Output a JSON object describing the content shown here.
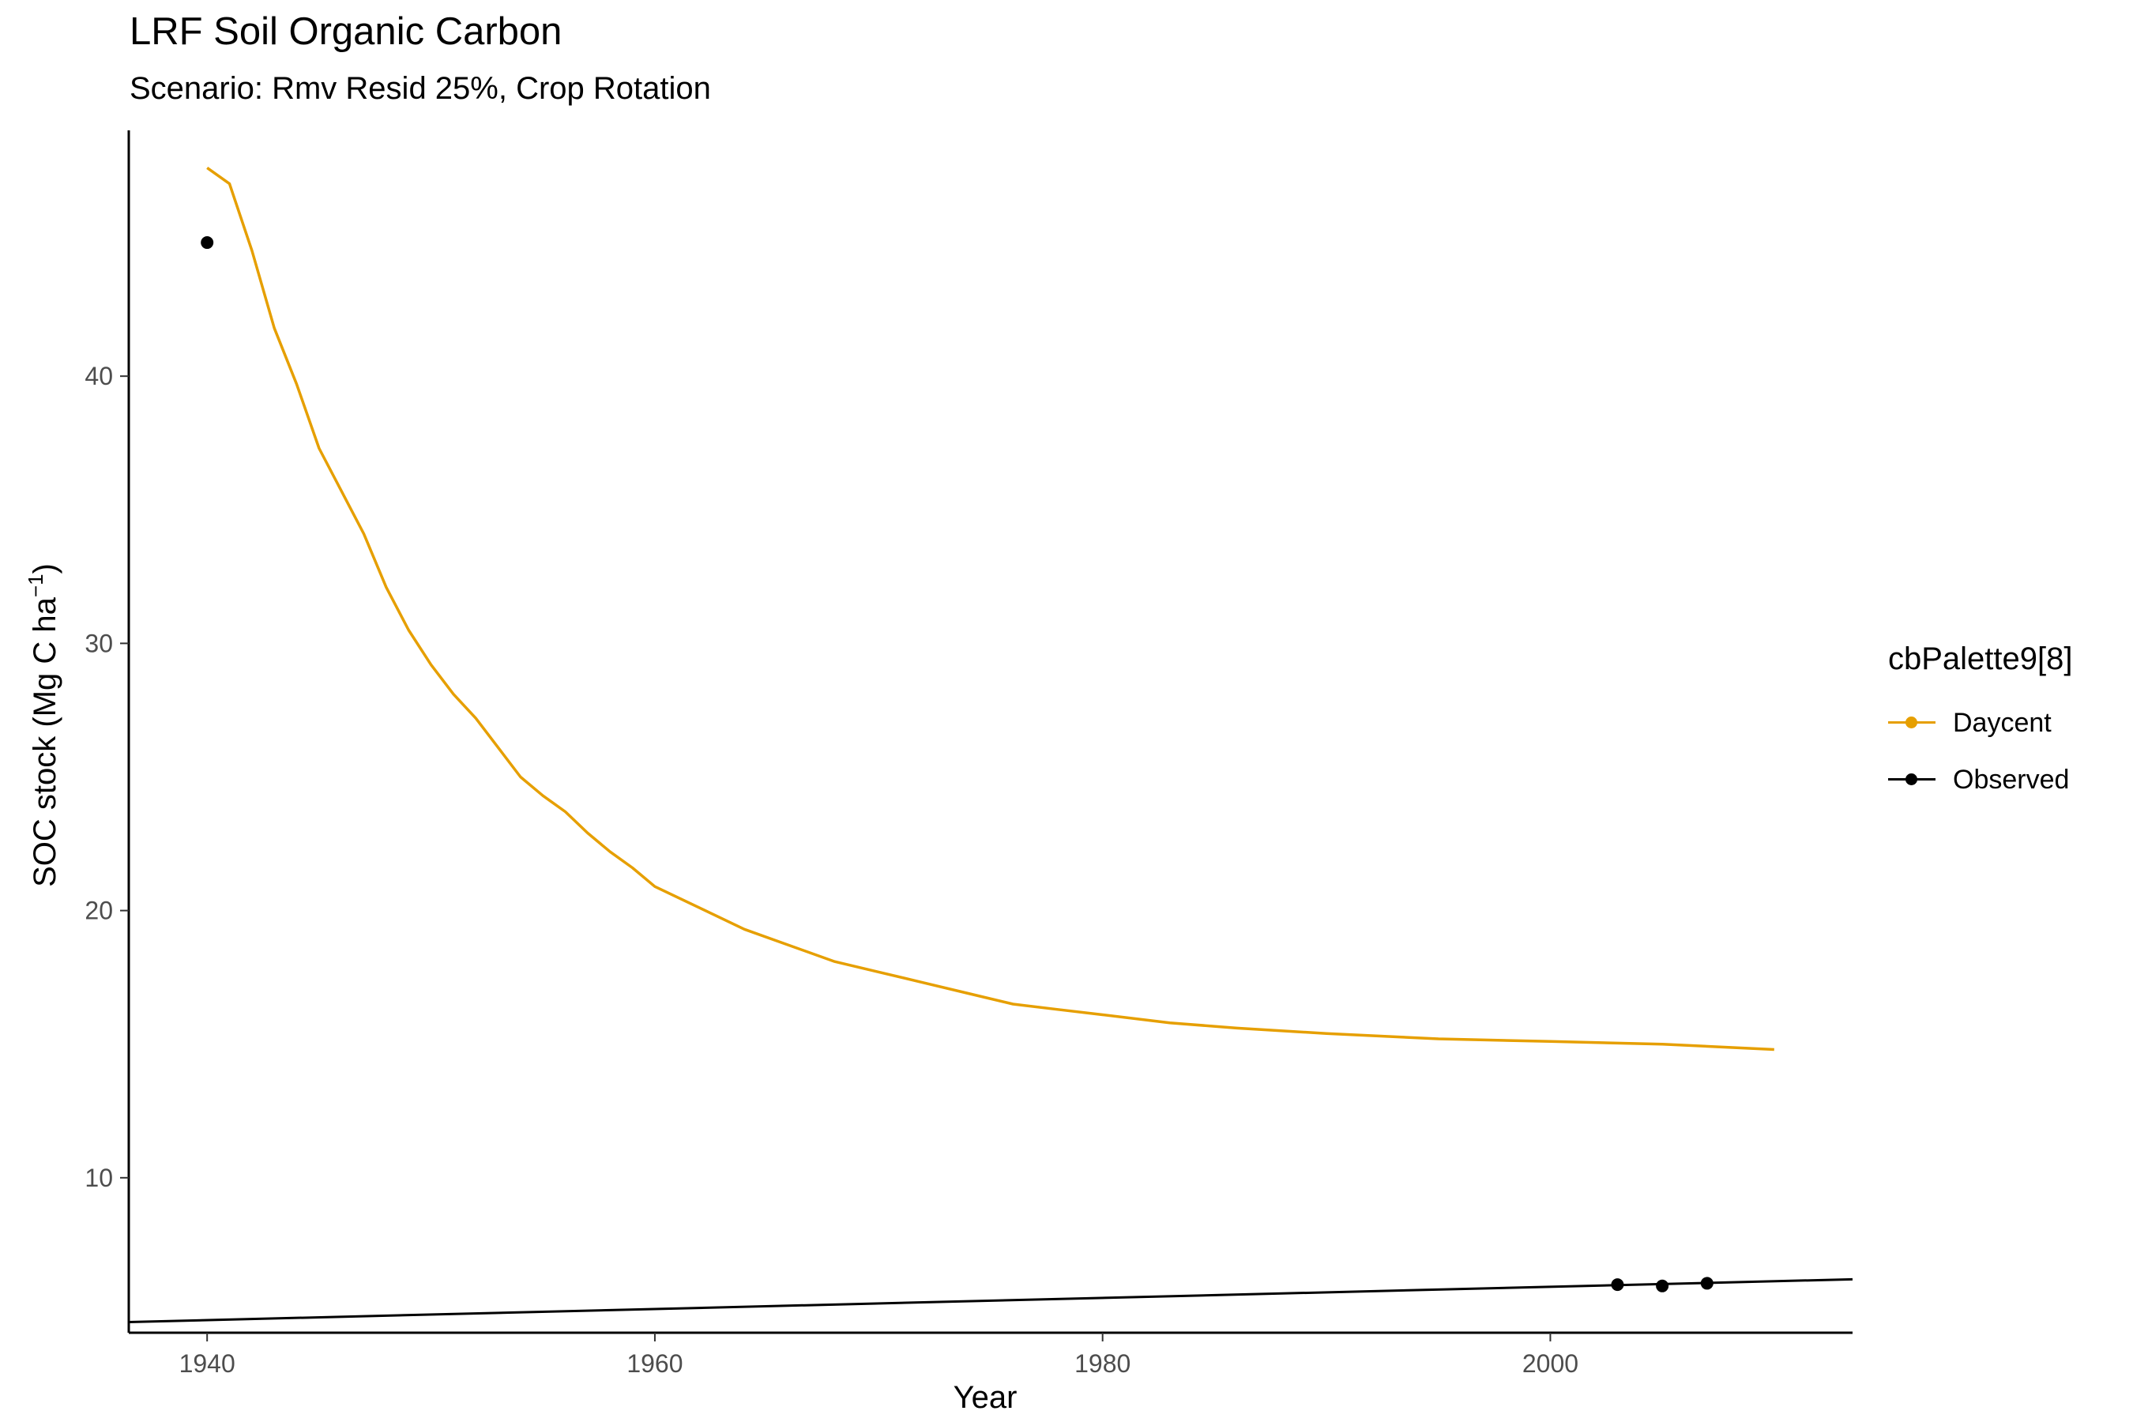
{
  "chart_data": {
    "type": "line",
    "title": "LRF Soil Organic Carbon",
    "subtitle": "Scenario: Rmv Resid 25%, Crop Rotation",
    "xlabel": "Year",
    "ylabel": "SOC stock (Mg C ha",
    "ylabel_sup": "−1",
    "ylabel_close": ")",
    "xlim": [
      1936.5,
      2013.5
    ],
    "ylim": [
      4.2,
      49.2
    ],
    "x_ticks": [
      1940,
      1960,
      1980,
      2000
    ],
    "x_tick_labels": [
      "1940",
      "1960",
      "1980",
      "2000"
    ],
    "y_ticks": [
      10,
      20,
      30,
      40
    ],
    "y_tick_labels": [
      "10",
      "20",
      "30",
      "40"
    ],
    "grid": false,
    "legend_title": "cbPalette9[8]",
    "legend_position": "right",
    "series": [
      {
        "name": "Daycent",
        "color": "#E69F00",
        "kind": "line",
        "x": [
          1940,
          1941,
          1942,
          1943,
          1944,
          1945,
          1946,
          1947,
          1948,
          1949,
          1950,
          1951,
          1952,
          1953,
          1954,
          1955,
          1956,
          1957,
          1958,
          1959,
          1960,
          1962,
          1964,
          1966,
          1968,
          1970,
          1972,
          1974,
          1976,
          1978,
          1980,
          1983,
          1986,
          1990,
          1995,
          2000,
          2005,
          2010
        ],
        "y": [
          47.8,
          47.2,
          44.7,
          41.8,
          39.7,
          37.3,
          35.7,
          34.1,
          32.1,
          30.5,
          29.2,
          28.1,
          27.2,
          26.1,
          25.0,
          24.3,
          23.7,
          22.9,
          22.2,
          21.6,
          20.9,
          20.1,
          19.3,
          18.7,
          18.1,
          17.7,
          17.3,
          16.9,
          16.5,
          16.3,
          16.1,
          15.8,
          15.6,
          15.4,
          15.2,
          15.1,
          15.0,
          14.8
        ]
      },
      {
        "name": "Observed",
        "color": "#000000",
        "kind": "points",
        "x": [
          1940,
          2003,
          2005,
          2007
        ],
        "y": [
          45.0,
          6.0,
          5.95,
          6.05
        ]
      }
    ],
    "fit_line": {
      "color": "#000000",
      "x": [
        1936.5,
        2013.5
      ],
      "y": [
        4.6,
        6.2
      ]
    }
  }
}
